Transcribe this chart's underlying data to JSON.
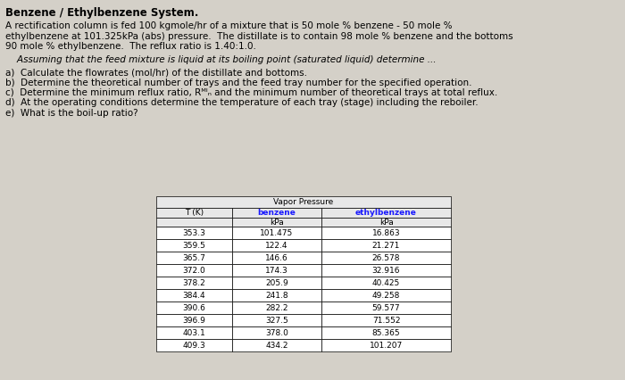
{
  "title": "Benzene / Ethylbenzene System.",
  "paragraph1_lines": [
    "A rectification column is fed 100 kgmole/hr of a mixture that is 50 mole % benzene - 50 mole %",
    "ethylbenzene at 101.325kPa (abs) pressure.  The distillate is to contain 98 mole % benzene and the bottoms",
    "90 mole % ethylbenzene.  The reflux ratio is 1.40:1.0."
  ],
  "italic_line": "    Assuming that the feed mixture is liquid at its boiling point (saturated liquid) determine ...",
  "items": [
    "a)  Calculate the flowrates (mol/hr) of the distillate and bottoms.",
    "b)  Determine the theoretical number of trays and the feed tray number for the specified operation.",
    "c)  Determine the minimum reflux ratio, Rᴹᴵₙ and the minimum number of theoretical trays at total reflux.",
    "d)  At the operating conditions determine the temperature of each tray (stage) including the reboiler.",
    "e)  What is the boil-up ratio?"
  ],
  "table_header_main": "Vapor Pressure",
  "table_col1": "T (K)",
  "table_col2_header": "benzene",
  "table_col2_unit": "kPa",
  "table_col3_header": "ethylbenzene",
  "table_col3_unit": "kPa",
  "table_data": [
    [
      "353.3",
      "101.475",
      "16.863"
    ],
    [
      "359.5",
      "122.4",
      "21.271"
    ],
    [
      "365.7",
      "146.6",
      "26.578"
    ],
    [
      "372.0",
      "174.3",
      "32.916"
    ],
    [
      "378.2",
      "205.9",
      "40.425"
    ],
    [
      "384.4",
      "241.8",
      "49.258"
    ],
    [
      "390.6",
      "282.2",
      "59.577"
    ],
    [
      "396.9",
      "327.5",
      "71.552"
    ],
    [
      "403.1",
      "378.0",
      "85.365"
    ],
    [
      "409.3",
      "434.2",
      "101.207"
    ]
  ],
  "bg_color": "#d4d0c8",
  "text_color": "#000000",
  "header_col_color": "#1a1aff",
  "table_bg": "#ffffff",
  "table_header_bg": "#e8e8e8"
}
